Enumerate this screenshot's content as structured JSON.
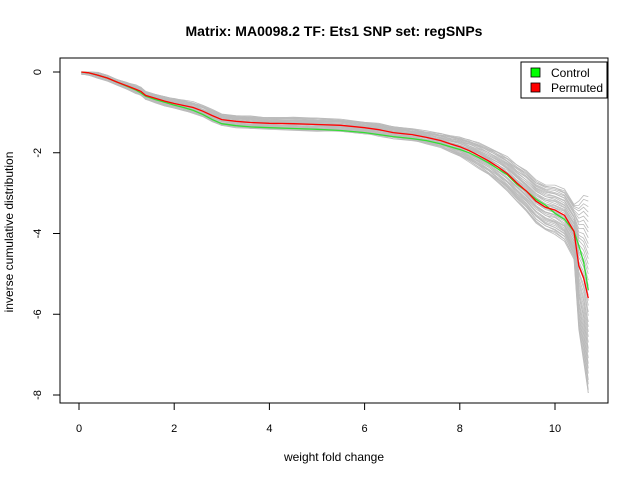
{
  "chart_data": {
    "type": "line",
    "title": "Matrix: MA0098.2 TF: Ets1 SNP set: regSNPs",
    "xlabel": "weight fold change",
    "ylabel": "inverse cumulative distribution",
    "xlim": [
      0,
      10.8
    ],
    "ylim": [
      -8,
      0
    ],
    "x_ticks": [
      "0",
      "2",
      "4",
      "6",
      "8",
      "10"
    ],
    "y_ticks": [
      "0",
      "-2",
      "-4",
      "-6",
      "-8"
    ],
    "grid": false,
    "legend_position": "top-right",
    "legend": [
      {
        "label": "Control",
        "color": "#00ff00"
      },
      {
        "label": "Permuted",
        "color": "#ff0000"
      }
    ],
    "series": [
      {
        "name": "Control",
        "color": "#33dd33",
        "x": [
          0.05,
          0.2,
          0.4,
          0.6,
          0.8,
          1.0,
          1.2,
          1.3,
          1.4,
          1.6,
          1.8,
          2.0,
          2.2,
          2.4,
          2.6,
          2.8,
          3.0,
          3.3,
          3.6,
          4.0,
          4.5,
          5.0,
          5.5,
          6.0,
          6.3,
          6.6,
          7.0,
          7.3,
          7.6,
          7.8,
          8.0,
          8.2,
          8.4,
          8.6,
          8.8,
          9.0,
          9.2,
          9.4,
          9.6,
          9.8,
          10.0,
          10.2,
          10.4,
          10.5,
          10.6,
          10.7
        ],
        "y": [
          0.0,
          -0.02,
          -0.08,
          -0.15,
          -0.25,
          -0.35,
          -0.45,
          -0.52,
          -0.6,
          -0.68,
          -0.75,
          -0.82,
          -0.88,
          -0.95,
          -1.05,
          -1.18,
          -1.28,
          -1.33,
          -1.36,
          -1.38,
          -1.4,
          -1.42,
          -1.45,
          -1.5,
          -1.55,
          -1.6,
          -1.65,
          -1.7,
          -1.78,
          -1.85,
          -1.92,
          -2.0,
          -2.12,
          -2.25,
          -2.4,
          -2.55,
          -2.78,
          -2.95,
          -3.15,
          -3.3,
          -3.5,
          -3.65,
          -3.95,
          -4.3,
          -4.7,
          -5.4
        ]
      },
      {
        "name": "Permuted",
        "color": "#ff0000",
        "x": [
          0.05,
          0.2,
          0.4,
          0.6,
          0.8,
          1.0,
          1.2,
          1.3,
          1.4,
          1.6,
          1.8,
          2.0,
          2.2,
          2.4,
          2.6,
          2.8,
          3.0,
          3.3,
          3.6,
          4.0,
          4.5,
          5.0,
          5.5,
          6.0,
          6.3,
          6.6,
          7.0,
          7.3,
          7.6,
          7.8,
          8.0,
          8.2,
          8.4,
          8.6,
          8.8,
          9.0,
          9.2,
          9.4,
          9.6,
          9.8,
          10.0,
          10.2,
          10.4,
          10.5,
          10.6,
          10.7
        ],
        "y": [
          0.0,
          -0.02,
          -0.08,
          -0.15,
          -0.25,
          -0.34,
          -0.43,
          -0.48,
          -0.58,
          -0.65,
          -0.72,
          -0.78,
          -0.83,
          -0.88,
          -0.97,
          -1.08,
          -1.18,
          -1.22,
          -1.25,
          -1.27,
          -1.28,
          -1.3,
          -1.32,
          -1.38,
          -1.43,
          -1.5,
          -1.55,
          -1.62,
          -1.7,
          -1.78,
          -1.85,
          -1.95,
          -2.07,
          -2.2,
          -2.35,
          -2.52,
          -2.75,
          -2.95,
          -3.2,
          -3.35,
          -3.42,
          -3.55,
          -3.95,
          -4.8,
          -5.1,
          -5.6
        ]
      }
    ],
    "background_series_color": "#bbbbbb",
    "background_series_count": 40
  }
}
